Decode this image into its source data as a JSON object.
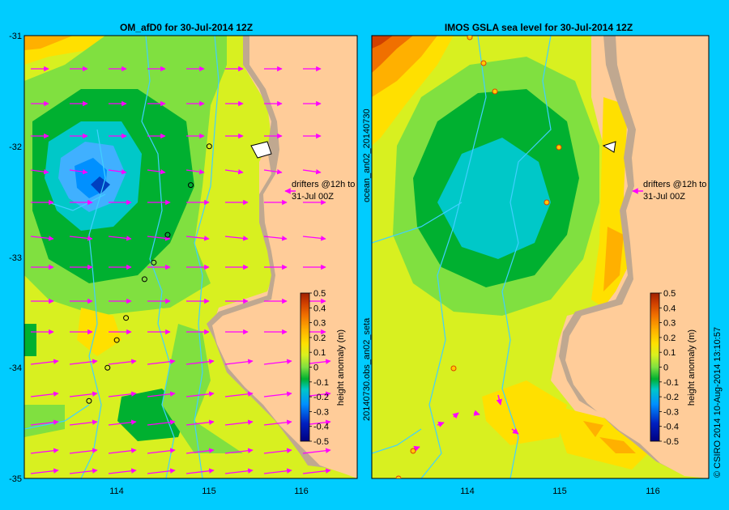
{
  "chart_data": [
    {
      "type": "heatmap",
      "title": "OM_afD0 for 30-Jul-2014 12Z",
      "y_ticks": [
        "-31",
        "-32",
        "-33",
        "-34",
        "-35"
      ],
      "x_ticks": [
        "114",
        "115",
        "116"
      ],
      "xlim": [
        113,
        116.6
      ],
      "ylim": [
        -35,
        -31
      ],
      "colorbar": {
        "label": "height anomaly (m)",
        "min": -0.5,
        "max": 0.5,
        "ticks": [
          "0.5",
          "0.4",
          "0.3",
          "0.2",
          "0.1",
          "0",
          "-0.1",
          "-0.2",
          "-0.3",
          "-0.4",
          "-0.5"
        ]
      },
      "annotation": [
        "drifters @12h to",
        "31-Jul 00Z"
      ],
      "eddy_center": {
        "lon": 113.8,
        "lat": -32.35,
        "value": -0.3
      },
      "drifter_positions": [
        {
          "lon": 115.0,
          "lat": -32.0
        },
        {
          "lon": 114.8,
          "lat": -32.35
        },
        {
          "lon": 114.55,
          "lat": -32.8
        },
        {
          "lon": 114.4,
          "lat": -33.05
        },
        {
          "lon": 114.3,
          "lat": -33.2
        },
        {
          "lon": 114.1,
          "lat": -33.55
        },
        {
          "lon": 114.0,
          "lat": -33.75
        },
        {
          "lon": 113.9,
          "lat": -34.0
        },
        {
          "lon": 113.7,
          "lat": -34.3
        }
      ]
    },
    {
      "type": "heatmap",
      "title": "IMOS GSLA sea level  for 30-Jul-2014 12Z",
      "x_ticks": [
        "114",
        "115",
        "116"
      ],
      "xlim": [
        113,
        116.6
      ],
      "ylim": [
        -35,
        -31
      ],
      "colorbar": {
        "label": "height anomaly (m)",
        "min": -0.5,
        "max": 0.5,
        "ticks": [
          "0.5",
          "0.4",
          "0.3",
          "0.2",
          "0.1",
          "0",
          "-0.1",
          "-0.2",
          "-0.3",
          "-0.4",
          "-0.5"
        ]
      },
      "annotation": [
        "drifters @12h to",
        "31-Jul 00Z"
      ],
      "eddy_center": {
        "lon": 114.2,
        "lat": -32.5,
        "value": -0.15
      }
    }
  ],
  "side_label_left": "20140730.obs_an02_seta",
  "side_label_left2": "ocean_an02_20140730",
  "side_label_right": "© CSIRO 2014   10-Aug-2014 13:10:57",
  "colors": {
    "background": "#00ccff",
    "land": "#ffcc99",
    "shelf": "#c0a890",
    "arrows": "#ff00ff",
    "rivers": "#40d0ff"
  }
}
